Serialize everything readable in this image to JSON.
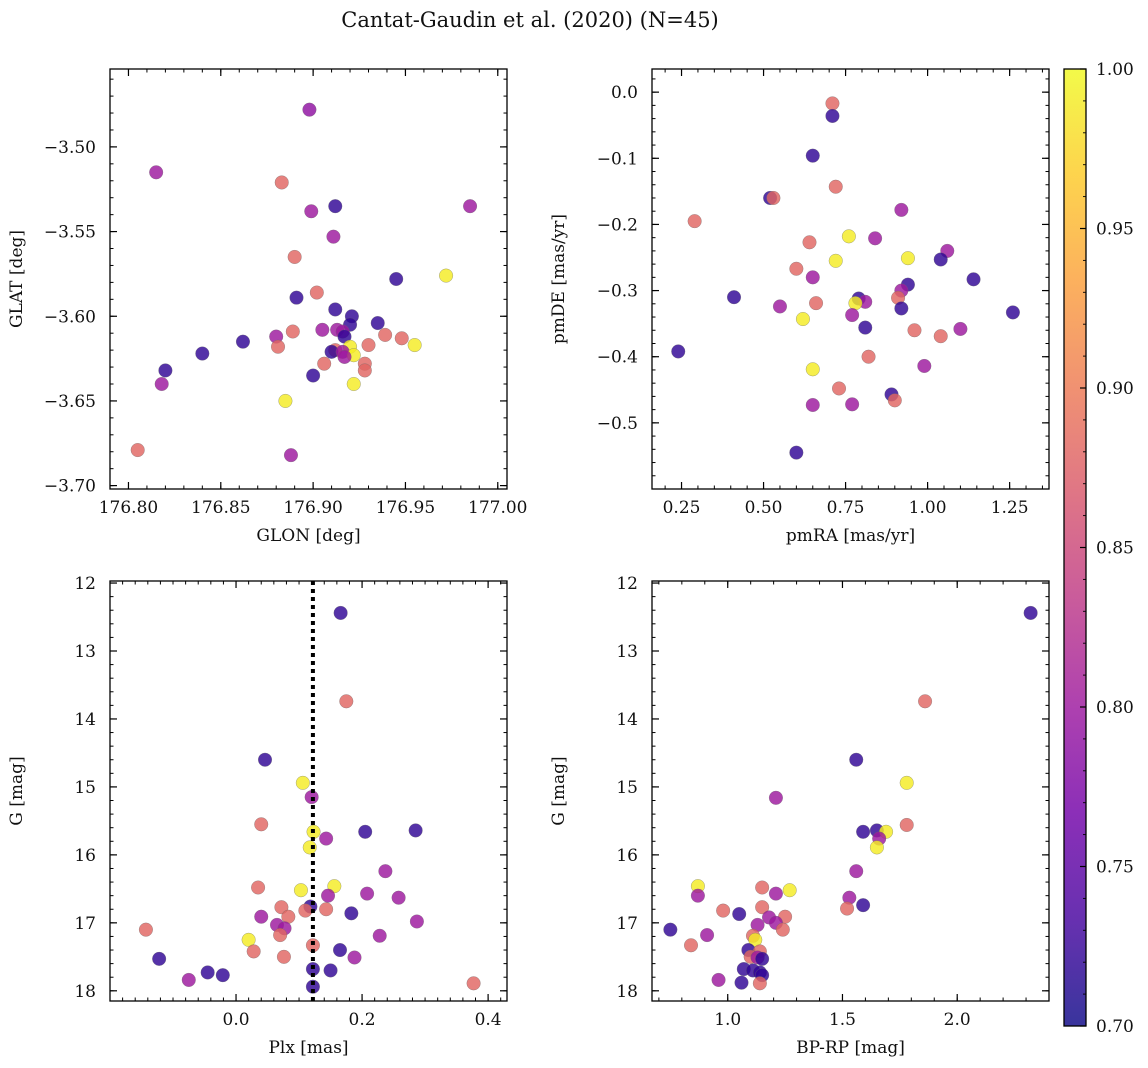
{
  "title": "Cantat-Gaudin et al. (2020) (N=45)",
  "colormap": {
    "name": "plasma",
    "stops": [
      "#0d0887",
      "#46039f",
      "#7201a8",
      "#9c179e",
      "#bd3786",
      "#d8576b",
      "#ed7953",
      "#fb9f3a",
      "#fdca26",
      "#f0f921"
    ],
    "range": [
      0.7,
      1.0
    ],
    "ticks": [
      0.7,
      0.75,
      0.8,
      0.85,
      0.9,
      0.95,
      1.0
    ],
    "tick_labels": [
      "0.70",
      "0.75",
      "0.80",
      "0.85",
      "0.90",
      "0.95",
      "1.00"
    ]
  },
  "chart_data": [
    {
      "type": "scatter",
      "panel": "top-left",
      "xlabel": "GLON [deg]",
      "ylabel": "GLAT [deg]",
      "xlim": [
        176.79,
        177.005
      ],
      "ylim": [
        -3.702,
        -3.454
      ],
      "xticks": [
        176.8,
        176.85,
        176.9,
        176.95,
        177.0
      ],
      "xtick_labels": [
        "176.80",
        "176.85",
        "176.90",
        "176.95",
        "177.00"
      ],
      "yticks": [
        -3.7,
        -3.65,
        -3.6,
        -3.55,
        -3.5
      ],
      "ytick_labels": [
        "−3.70",
        "−3.65",
        "−3.60",
        "−3.55",
        "−3.50"
      ],
      "xminor": 0.01,
      "yminor": 0.01,
      "points": [
        {
          "x": 176.898,
          "y": -3.478,
          "c": 0.79
        },
        {
          "x": 176.815,
          "y": -3.515,
          "c": 0.8
        },
        {
          "x": 176.883,
          "y": -3.521,
          "c": 0.88
        },
        {
          "x": 176.912,
          "y": -3.535,
          "c": 0.72
        },
        {
          "x": 176.985,
          "y": -3.535,
          "c": 0.8
        },
        {
          "x": 176.899,
          "y": -3.538,
          "c": 0.8
        },
        {
          "x": 176.911,
          "y": -3.553,
          "c": 0.8
        },
        {
          "x": 176.89,
          "y": -3.565,
          "c": 0.88
        },
        {
          "x": 176.945,
          "y": -3.578,
          "c": 0.72
        },
        {
          "x": 176.972,
          "y": -3.576,
          "c": 0.99
        },
        {
          "x": 176.902,
          "y": -3.586,
          "c": 0.88
        },
        {
          "x": 176.891,
          "y": -3.589,
          "c": 0.72
        },
        {
          "x": 176.912,
          "y": -3.596,
          "c": 0.72
        },
        {
          "x": 176.921,
          "y": -3.6,
          "c": 0.72
        },
        {
          "x": 176.935,
          "y": -3.604,
          "c": 0.72
        },
        {
          "x": 176.92,
          "y": -3.605,
          "c": 0.72
        },
        {
          "x": 176.905,
          "y": -3.608,
          "c": 0.8
        },
        {
          "x": 176.913,
          "y": -3.608,
          "c": 0.8
        },
        {
          "x": 176.889,
          "y": -3.609,
          "c": 0.88
        },
        {
          "x": 176.916,
          "y": -3.609,
          "c": 0.8
        },
        {
          "x": 176.939,
          "y": -3.611,
          "c": 0.88
        },
        {
          "x": 176.88,
          "y": -3.612,
          "c": 0.8
        },
        {
          "x": 176.917,
          "y": -3.612,
          "c": 0.72
        },
        {
          "x": 176.948,
          "y": -3.613,
          "c": 0.88
        },
        {
          "x": 176.862,
          "y": -3.615,
          "c": 0.72
        },
        {
          "x": 176.955,
          "y": -3.617,
          "c": 0.99
        },
        {
          "x": 176.93,
          "y": -3.617,
          "c": 0.88
        },
        {
          "x": 176.881,
          "y": -3.618,
          "c": 0.88
        },
        {
          "x": 176.92,
          "y": -3.618,
          "c": 0.99
        },
        {
          "x": 176.912,
          "y": -3.62,
          "c": 0.88
        },
        {
          "x": 176.91,
          "y": -3.621,
          "c": 0.72
        },
        {
          "x": 176.916,
          "y": -3.621,
          "c": 0.8
        },
        {
          "x": 176.84,
          "y": -3.622,
          "c": 0.72
        },
        {
          "x": 176.922,
          "y": -3.623,
          "c": 0.99
        },
        {
          "x": 176.917,
          "y": -3.624,
          "c": 0.8
        },
        {
          "x": 176.906,
          "y": -3.628,
          "c": 0.88
        },
        {
          "x": 176.928,
          "y": -3.628,
          "c": 0.88
        },
        {
          "x": 176.82,
          "y": -3.632,
          "c": 0.72
        },
        {
          "x": 176.928,
          "y": -3.632,
          "c": 0.88
        },
        {
          "x": 176.9,
          "y": -3.635,
          "c": 0.72
        },
        {
          "x": 176.818,
          "y": -3.64,
          "c": 0.8
        },
        {
          "x": 176.922,
          "y": -3.64,
          "c": 0.99
        },
        {
          "x": 176.885,
          "y": -3.65,
          "c": 0.99
        },
        {
          "x": 176.805,
          "y": -3.679,
          "c": 0.88
        },
        {
          "x": 176.888,
          "y": -3.682,
          "c": 0.8
        }
      ]
    },
    {
      "type": "scatter",
      "panel": "top-right",
      "xlabel": "pmRA [mas/yr]",
      "ylabel": "pmDE [mas/yr]",
      "xlim": [
        0.16,
        1.37
      ],
      "ylim": [
        -0.6,
        0.035
      ],
      "xticks": [
        0.25,
        0.5,
        0.75,
        1.0,
        1.25
      ],
      "xtick_labels": [
        "0.25",
        "0.50",
        "0.75",
        "1.00",
        "1.25"
      ],
      "yticks": [
        -0.5,
        -0.4,
        -0.3,
        -0.2,
        -0.1,
        0.0
      ],
      "ytick_labels": [
        "−0.5",
        "−0.4",
        "−0.3",
        "−0.2",
        "−0.1",
        "0.0"
      ],
      "xminor": 0.05,
      "yminor": 0.02,
      "points": [
        {
          "x": 0.71,
          "y": -0.017,
          "c": 0.88
        },
        {
          "x": 0.71,
          "y": -0.036,
          "c": 0.72
        },
        {
          "x": 0.65,
          "y": -0.096,
          "c": 0.72
        },
        {
          "x": 0.72,
          "y": -0.143,
          "c": 0.88
        },
        {
          "x": 0.52,
          "y": -0.16,
          "c": 0.72
        },
        {
          "x": 0.53,
          "y": -0.16,
          "c": 0.88
        },
        {
          "x": 0.92,
          "y": -0.178,
          "c": 0.8
        },
        {
          "x": 0.29,
          "y": -0.195,
          "c": 0.88
        },
        {
          "x": 0.76,
          "y": -0.218,
          "c": 0.99
        },
        {
          "x": 0.84,
          "y": -0.221,
          "c": 0.8
        },
        {
          "x": 0.64,
          "y": -0.227,
          "c": 0.88
        },
        {
          "x": 1.06,
          "y": -0.24,
          "c": 0.8
        },
        {
          "x": 0.94,
          "y": -0.251,
          "c": 0.99
        },
        {
          "x": 1.04,
          "y": -0.253,
          "c": 0.72
        },
        {
          "x": 0.72,
          "y": -0.255,
          "c": 0.99
        },
        {
          "x": 0.6,
          "y": -0.267,
          "c": 0.88
        },
        {
          "x": 0.65,
          "y": -0.28,
          "c": 0.8
        },
        {
          "x": 1.14,
          "y": -0.283,
          "c": 0.72
        },
        {
          "x": 0.94,
          "y": -0.291,
          "c": 0.72
        },
        {
          "x": 0.92,
          "y": -0.3,
          "c": 0.8
        },
        {
          "x": 0.41,
          "y": -0.31,
          "c": 0.72
        },
        {
          "x": 0.91,
          "y": -0.311,
          "c": 0.88
        },
        {
          "x": 0.79,
          "y": -0.312,
          "c": 0.72
        },
        {
          "x": 0.81,
          "y": -0.317,
          "c": 0.8
        },
        {
          "x": 0.66,
          "y": -0.319,
          "c": 0.88
        },
        {
          "x": 0.78,
          "y": -0.319,
          "c": 0.99
        },
        {
          "x": 0.55,
          "y": -0.324,
          "c": 0.8
        },
        {
          "x": 0.92,
          "y": -0.327,
          "c": 0.72
        },
        {
          "x": 1.26,
          "y": -0.333,
          "c": 0.72
        },
        {
          "x": 0.77,
          "y": -0.337,
          "c": 0.8
        },
        {
          "x": 0.62,
          "y": -0.343,
          "c": 0.99
        },
        {
          "x": 0.81,
          "y": -0.356,
          "c": 0.72
        },
        {
          "x": 1.1,
          "y": -0.358,
          "c": 0.8
        },
        {
          "x": 0.96,
          "y": -0.36,
          "c": 0.88
        },
        {
          "x": 1.04,
          "y": -0.369,
          "c": 0.88
        },
        {
          "x": 0.24,
          "y": -0.392,
          "c": 0.72
        },
        {
          "x": 0.82,
          "y": -0.4,
          "c": 0.88
        },
        {
          "x": 0.99,
          "y": -0.414,
          "c": 0.8
        },
        {
          "x": 0.65,
          "y": -0.419,
          "c": 0.99
        },
        {
          "x": 0.73,
          "y": -0.448,
          "c": 0.88
        },
        {
          "x": 0.89,
          "y": -0.457,
          "c": 0.72
        },
        {
          "x": 0.9,
          "y": -0.466,
          "c": 0.88
        },
        {
          "x": 0.65,
          "y": -0.473,
          "c": 0.8
        },
        {
          "x": 0.77,
          "y": -0.472,
          "c": 0.8
        },
        {
          "x": 0.6,
          "y": -0.545,
          "c": 0.72
        }
      ]
    },
    {
      "type": "scatter",
      "panel": "bottom-left",
      "xlabel": "Plx [mas]",
      "ylabel": "G [mag]",
      "xlim": [
        -0.2,
        0.43
      ],
      "ylim": [
        18.15,
        11.97
      ],
      "xticks": [
        0.0,
        0.2,
        0.4
      ],
      "xtick_labels": [
        "0.0",
        "0.2",
        "0.4"
      ],
      "yticks": [
        12,
        13,
        14,
        15,
        16,
        17,
        18
      ],
      "ytick_labels": [
        "12",
        "13",
        "14",
        "15",
        "16",
        "17",
        "18"
      ],
      "xminor": 0.02,
      "yminor": 0.2,
      "vline": {
        "x": 0.122,
        "style": "dotted",
        "color": "#000000"
      },
      "points": [
        {
          "x": 0.166,
          "y": 12.44,
          "c": 0.72
        },
        {
          "x": 0.175,
          "y": 13.74,
          "c": 0.88
        },
        {
          "x": 0.046,
          "y": 14.6,
          "c": 0.72
        },
        {
          "x": 0.106,
          "y": 14.94,
          "c": 0.99
        },
        {
          "x": 0.12,
          "y": 15.15,
          "c": 0.8
        },
        {
          "x": 0.04,
          "y": 15.55,
          "c": 0.88
        },
        {
          "x": 0.285,
          "y": 15.64,
          "c": 0.72
        },
        {
          "x": 0.205,
          "y": 15.66,
          "c": 0.72
        },
        {
          "x": 0.123,
          "y": 15.66,
          "c": 0.99
        },
        {
          "x": 0.143,
          "y": 15.76,
          "c": 0.8
        },
        {
          "x": 0.117,
          "y": 15.89,
          "c": 0.99
        },
        {
          "x": 0.237,
          "y": 16.24,
          "c": 0.8
        },
        {
          "x": 0.035,
          "y": 16.48,
          "c": 0.88
        },
        {
          "x": 0.156,
          "y": 16.46,
          "c": 0.99
        },
        {
          "x": 0.103,
          "y": 16.52,
          "c": 0.99
        },
        {
          "x": 0.208,
          "y": 16.57,
          "c": 0.8
        },
        {
          "x": 0.146,
          "y": 16.6,
          "c": 0.8
        },
        {
          "x": 0.258,
          "y": 16.63,
          "c": 0.8
        },
        {
          "x": 0.118,
          "y": 16.76,
          "c": 0.72
        },
        {
          "x": 0.072,
          "y": 16.77,
          "c": 0.88
        },
        {
          "x": 0.143,
          "y": 16.8,
          "c": 0.88
        },
        {
          "x": 0.11,
          "y": 16.82,
          "c": 0.88
        },
        {
          "x": 0.183,
          "y": 16.86,
          "c": 0.72
        },
        {
          "x": 0.04,
          "y": 16.91,
          "c": 0.8
        },
        {
          "x": 0.083,
          "y": 16.91,
          "c": 0.88
        },
        {
          "x": 0.287,
          "y": 16.98,
          "c": 0.8
        },
        {
          "x": 0.065,
          "y": 17.03,
          "c": 0.8
        },
        {
          "x": 0.077,
          "y": 17.08,
          "c": 0.8
        },
        {
          "x": -0.143,
          "y": 17.1,
          "c": 0.88
        },
        {
          "x": 0.07,
          "y": 17.18,
          "c": 0.88
        },
        {
          "x": 0.228,
          "y": 17.19,
          "c": 0.8
        },
        {
          "x": 0.02,
          "y": 17.25,
          "c": 0.99
        },
        {
          "x": 0.122,
          "y": 17.33,
          "c": 0.88
        },
        {
          "x": 0.165,
          "y": 17.4,
          "c": 0.72
        },
        {
          "x": 0.028,
          "y": 17.42,
          "c": 0.88
        },
        {
          "x": 0.076,
          "y": 17.5,
          "c": 0.88
        },
        {
          "x": 0.188,
          "y": 17.51,
          "c": 0.8
        },
        {
          "x": -0.122,
          "y": 17.53,
          "c": 0.72
        },
        {
          "x": 0.122,
          "y": 17.68,
          "c": 0.72
        },
        {
          "x": 0.15,
          "y": 17.7,
          "c": 0.72
        },
        {
          "x": -0.045,
          "y": 17.73,
          "c": 0.72
        },
        {
          "x": -0.021,
          "y": 17.77,
          "c": 0.72
        },
        {
          "x": -0.075,
          "y": 17.84,
          "c": 0.8
        },
        {
          "x": 0.377,
          "y": 17.89,
          "c": 0.88
        },
        {
          "x": 0.122,
          "y": 17.94,
          "c": 0.72
        }
      ]
    },
    {
      "type": "scatter",
      "panel": "bottom-right",
      "xlabel": "BP-RP [mag]",
      "ylabel": "G [mag]",
      "xlim": [
        0.67,
        2.4
      ],
      "ylim": [
        18.15,
        11.97
      ],
      "xticks": [
        1.0,
        1.5,
        2.0
      ],
      "xtick_labels": [
        "1.0",
        "1.5",
        "2.0"
      ],
      "yticks": [
        12,
        13,
        14,
        15,
        16,
        17,
        18
      ],
      "ytick_labels": [
        "12",
        "13",
        "14",
        "15",
        "16",
        "17",
        "18"
      ],
      "xminor": 0.1,
      "yminor": 0.2,
      "points": [
        {
          "x": 2.32,
          "y": 12.44,
          "c": 0.72
        },
        {
          "x": 1.86,
          "y": 13.74,
          "c": 0.88
        },
        {
          "x": 1.56,
          "y": 14.6,
          "c": 0.72
        },
        {
          "x": 1.78,
          "y": 14.94,
          "c": 0.99
        },
        {
          "x": 1.21,
          "y": 15.16,
          "c": 0.8
        },
        {
          "x": 1.78,
          "y": 15.56,
          "c": 0.88
        },
        {
          "x": 1.65,
          "y": 15.64,
          "c": 0.72
        },
        {
          "x": 1.59,
          "y": 15.66,
          "c": 0.72
        },
        {
          "x": 1.69,
          "y": 15.66,
          "c": 0.99
        },
        {
          "x": 1.66,
          "y": 15.76,
          "c": 0.8
        },
        {
          "x": 1.65,
          "y": 15.89,
          "c": 0.99
        },
        {
          "x": 1.56,
          "y": 16.24,
          "c": 0.8
        },
        {
          "x": 0.87,
          "y": 16.46,
          "c": 0.99
        },
        {
          "x": 1.15,
          "y": 16.48,
          "c": 0.88
        },
        {
          "x": 1.27,
          "y": 16.52,
          "c": 0.99
        },
        {
          "x": 1.21,
          "y": 16.57,
          "c": 0.8
        },
        {
          "x": 0.87,
          "y": 16.6,
          "c": 0.8
        },
        {
          "x": 1.53,
          "y": 16.63,
          "c": 0.8
        },
        {
          "x": 1.59,
          "y": 16.74,
          "c": 0.72
        },
        {
          "x": 1.15,
          "y": 16.77,
          "c": 0.88
        },
        {
          "x": 1.52,
          "y": 16.79,
          "c": 0.88
        },
        {
          "x": 0.98,
          "y": 16.82,
          "c": 0.88
        },
        {
          "x": 1.05,
          "y": 16.87,
          "c": 0.72
        },
        {
          "x": 1.25,
          "y": 16.91,
          "c": 0.88
        },
        {
          "x": 1.18,
          "y": 16.92,
          "c": 0.8
        },
        {
          "x": 1.13,
          "y": 17.03,
          "c": 0.8
        },
        {
          "x": 1.21,
          "y": 17.0,
          "c": 0.8
        },
        {
          "x": 0.75,
          "y": 17.1,
          "c": 0.72
        },
        {
          "x": 1.24,
          "y": 17.1,
          "c": 0.88
        },
        {
          "x": 0.91,
          "y": 17.18,
          "c": 0.8
        },
        {
          "x": 1.11,
          "y": 17.19,
          "c": 0.88
        },
        {
          "x": 1.12,
          "y": 17.25,
          "c": 0.99
        },
        {
          "x": 0.84,
          "y": 17.33,
          "c": 0.88
        },
        {
          "x": 1.09,
          "y": 17.4,
          "c": 0.72
        },
        {
          "x": 1.14,
          "y": 17.42,
          "c": 0.88
        },
        {
          "x": 1.1,
          "y": 17.5,
          "c": 0.88
        },
        {
          "x": 1.13,
          "y": 17.51,
          "c": 0.8
        },
        {
          "x": 1.15,
          "y": 17.53,
          "c": 0.72
        },
        {
          "x": 1.07,
          "y": 17.68,
          "c": 0.72
        },
        {
          "x": 1.11,
          "y": 17.7,
          "c": 0.72
        },
        {
          "x": 1.14,
          "y": 17.73,
          "c": 0.72
        },
        {
          "x": 1.15,
          "y": 17.77,
          "c": 0.72
        },
        {
          "x": 0.96,
          "y": 17.84,
          "c": 0.8
        },
        {
          "x": 1.14,
          "y": 17.89,
          "c": 0.88
        },
        {
          "x": 1.06,
          "y": 17.88,
          "c": 0.72
        }
      ]
    }
  ]
}
